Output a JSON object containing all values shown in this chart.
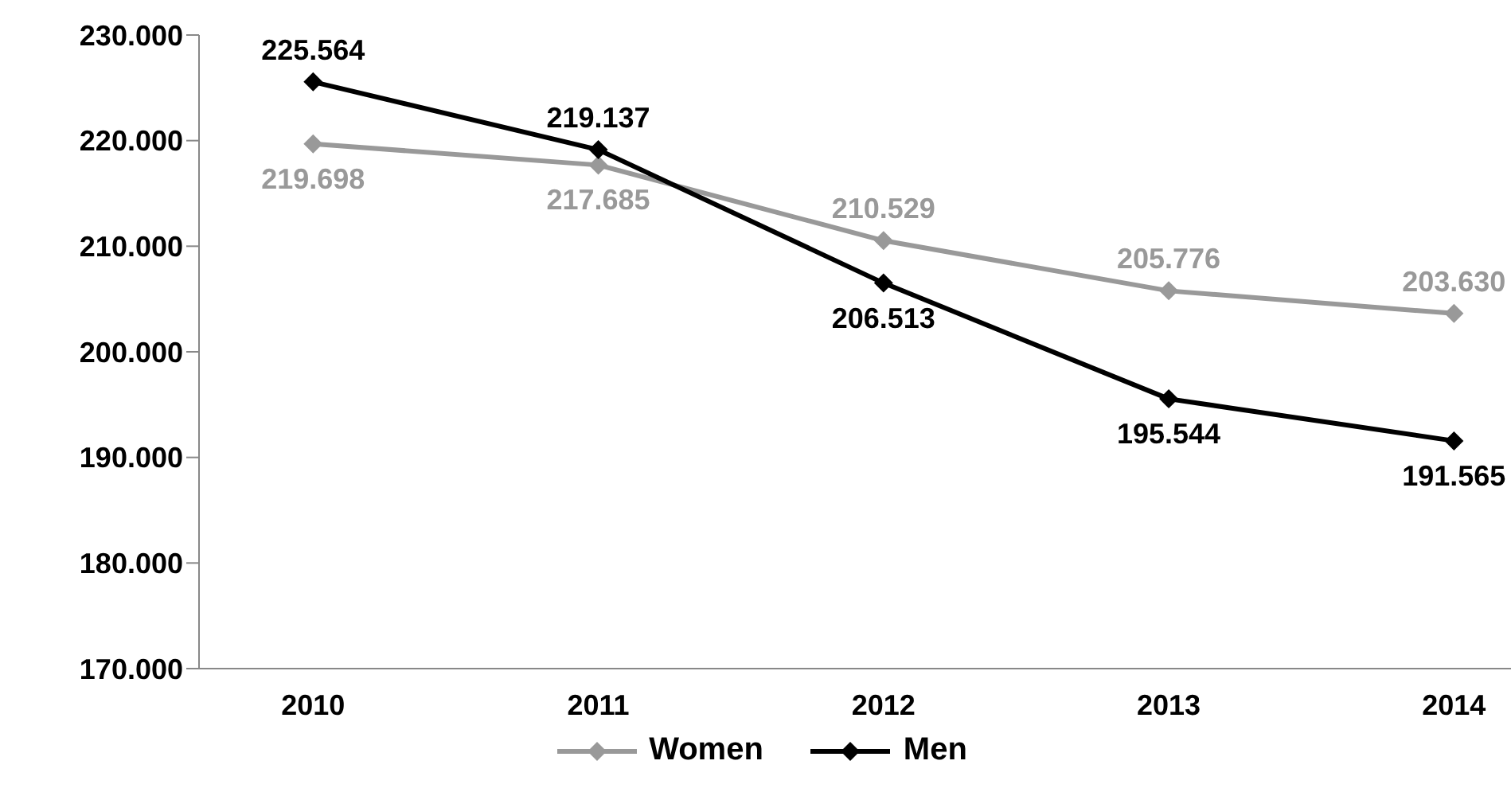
{
  "chart_data": {
    "type": "line",
    "categories": [
      "2010",
      "2011",
      "2012",
      "2013",
      "2014"
    ],
    "series": [
      {
        "name": "Women",
        "color": "#999999",
        "values": [
          219.698,
          217.685,
          210.529,
          205.776,
          203.63
        ],
        "value_labels": [
          "219.698",
          "217.685",
          "210.529",
          "205.776",
          "203.630"
        ]
      },
      {
        "name": "Men",
        "color": "#000000",
        "values": [
          225.564,
          219.137,
          206.513,
          195.544,
          191.565
        ],
        "value_labels": [
          "225.564",
          "219.137",
          "206.513",
          "195.544",
          "191.565"
        ]
      }
    ],
    "ylim": [
      170,
      230
    ],
    "yticks": [
      {
        "value": 170,
        "label": "170.000"
      },
      {
        "value": 180,
        "label": "180.000"
      },
      {
        "value": 190,
        "label": "190.000"
      },
      {
        "value": 200,
        "label": "200.000"
      },
      {
        "value": 210,
        "label": "210.000"
      },
      {
        "value": 220,
        "label": "220.000"
      },
      {
        "value": 230,
        "label": "230.000"
      }
    ],
    "marker": "diamond",
    "grid": false,
    "legend": "bottom"
  }
}
